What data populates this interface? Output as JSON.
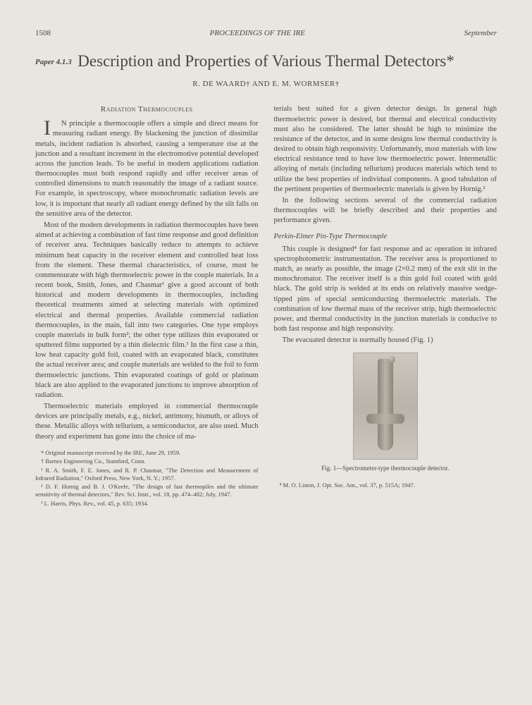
{
  "header": {
    "page": "1508",
    "journal": "PROCEEDINGS OF THE IRE",
    "month": "September"
  },
  "paperId": "Paper 4.1.3",
  "title": "Description and Properties of Various Thermal Detectors*",
  "authors": "R. DE WAARD† AND E. M. WORMSER†",
  "section1": "Radiation Thermocouples",
  "col1": {
    "p1": "IN principle a thermocouple offers a simple and direct means for measuring radiant energy. By blackening the junction of dissimilar metals, incident radiation is absorbed, causing a temperature rise at the junction and a resultant increment in the electromotive potential developed across the junction leads. To be useful in modern applications radiation thermocouples must both respond rapidly and offer receiver areas of controlled dimensions to match reasonably the image of a radiant source. For example, in spectroscopy, where monochromatic radiation levels are low, it is important that nearly all radiant energy defined by the slit falls on the sensitive area of the detector.",
    "p2": "Most of the modern developments in radiation thermocouples have been aimed at achieving a combination of fast time response and good definition of receiver area. Techniques basically reduce to attempts to achieve minimum heat capacity in the receiver element and controlled heat loss from the element. These thermal characteristics, of course, must be commensurate with high thermoelectric power in the couple materials. In a recent book, Smith, Jones, and Chasmar¹ give a good account of both historical and modern developments in thermocouples, including theoretical treatments aimed at selecting materials with optimized electrical and thermal properties. Available commercial radiation thermocouples, in the main, fall into two categories. One type employs couple materials in bulk form²; the other type utilizes thin evaporated or sputtered films supported by a thin dielectric film.³ In the first case a thin, low heat capacity gold foil, coated with an evaporated black, constitutes the actual receiver area; and couple materials are welded to the foil to form thermoelectric junctions. Thin evaporated coatings of gold or platinum black are also applied to the evaporated junctions to improve absorption of radiation.",
    "p3": "Thermoelectric materials employed in commercial thermocouple devices are principally metals, e.g., nickel, antimony, bismuth, or alloys of these. Metallic alloys with tellurium, a semiconductor, are also used. Much theory and experiment has gone into the choice of ma-"
  },
  "col2": {
    "p1": "terials best suited for a given detector design. In general high thermoelectric power is desired, but thermal and electrical conductivity must also be considered. The latter should be high to minimize the resistance of the detector, and in some designs low thermal conductivity is desired to obtain high responsivity. Unfortunately, most materials with low electrical resistance tend to have low thermoelectric power. Intermetallic alloying of metals (including tellurium) produces materials which tend to utilize the best properties of individual components. A good tabulation of the pertinent properties of thermoelectric materials is given by Hornig.²",
    "p2": "In the following sections several of the commercial radiation thermocouples will be briefly described and their properties and performance given.",
    "sub": "Perkin-Elmer Pin-Type Thermocouple",
    "p3": "This couple is designed⁴ for fast response and ac operation in infrared spectrophotometric instrumentation. The receiver area is proportioned to match, as nearly as possible, the image (2×0.2 mm) of the exit slit in the monochromator. The receiver itself is a thin gold foil coated with gold black. The gold strip is welded at its ends on relatively massive wedge-tipped pins of special semiconducting thermoelectric materials. The combination of low thermal mass of the receiver strip, high thermoelectric power, and thermal conductivity in the junction materials is conducive to both fast response and high responsivity.",
    "p4": "The evacuated detector is normally housed (Fig. 1)"
  },
  "footnotes": {
    "f0": "* Original manuscript received by the IRE, June 29, 1959.",
    "f1": "† Barnes Engineering Co., Stamford, Conn.",
    "f2": "¹ R. A. Smith, F. E. Jones, and R. P. Chasmar, \"The Detection and Measurement of Infrared Radiation,\" Oxford Press, New York, N. Y.; 1957.",
    "f3": "² D. F. Hornig and B. J. O'Keefe, \"The design of fast thermopiles and the ultimate sensitivity of thermal detectors,\" Rev. Sci. Instr., vol. 18, pp. 474–482; July, 1947.",
    "f4": "³ L. Harris, Phys. Rev., vol. 45, p. 635; 1934."
  },
  "figcap": "Fig. 1—Spectrometer-type thermocouple detector.",
  "ref4": "⁴ M. O. Liston, J. Opt. Soc. Am., vol. 37, p. 515A; 1947."
}
